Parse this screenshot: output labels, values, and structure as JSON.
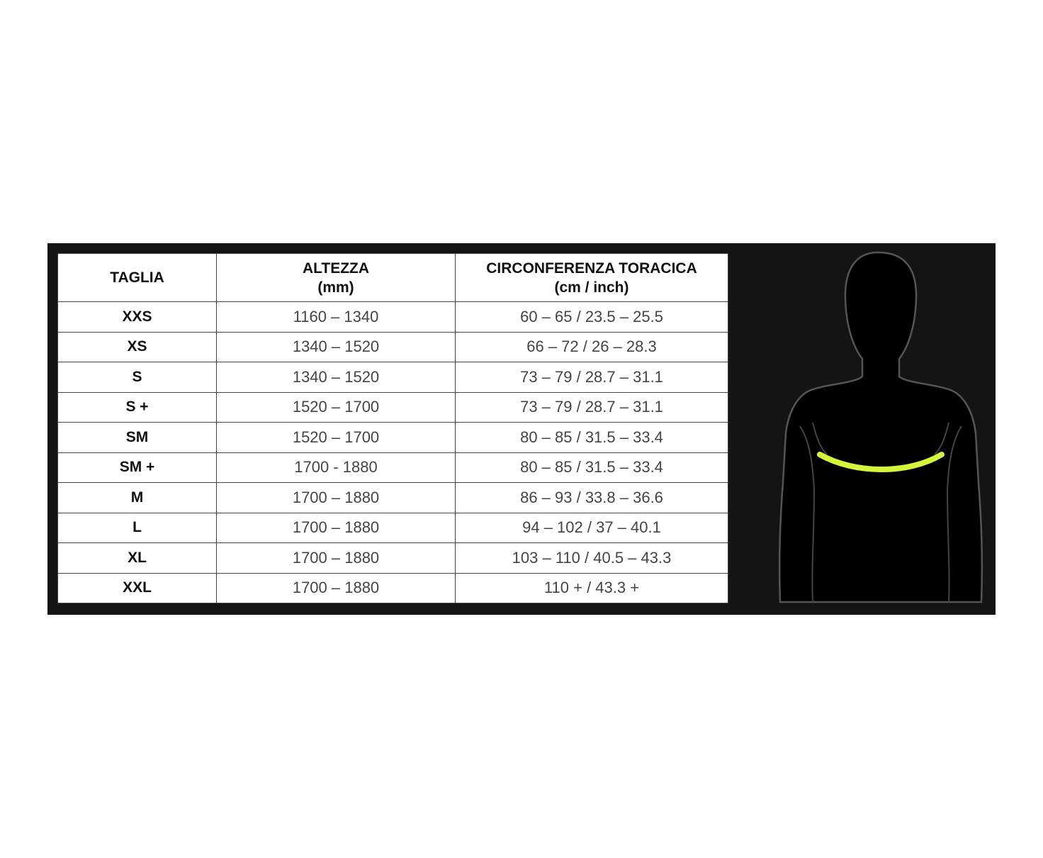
{
  "headers": [
    {
      "line1": "TAGLIA",
      "line2": ""
    },
    {
      "line1": "ALTEZZA",
      "line2": "(mm)"
    },
    {
      "line1": "CIRCONFERENZA TORACICA",
      "line2": "(cm / inch)"
    }
  ],
  "rows": [
    {
      "size": "XXS",
      "height": "1160 – 1340",
      "chest": "60 – 65 / 23.5 – 25.5"
    },
    {
      "size": "XS",
      "height": "1340 – 1520",
      "chest": "66 – 72 / 26 – 28.3"
    },
    {
      "size": "S",
      "height": "1340 – 1520",
      "chest": "73 – 79 / 28.7 – 31.1"
    },
    {
      "size": "S +",
      "height": "1520 – 1700",
      "chest": "73 – 79 / 28.7 – 31.1"
    },
    {
      "size": "SM",
      "height": "1520 – 1700",
      "chest": "80 – 85 / 31.5 – 33.4"
    },
    {
      "size": "SM +",
      "height": "1700 - 1880",
      "chest": "80 – 85 / 31.5 – 33.4"
    },
    {
      "size": "M",
      "height": "1700 – 1880",
      "chest": "86 – 93 / 33.8 – 36.6"
    },
    {
      "size": "L",
      "height": "1700 – 1880",
      "chest": "94 – 102 / 37 – 40.1"
    },
    {
      "size": "XL",
      "height": "1700 – 1880",
      "chest": "103 – 110 / 40.5 – 43.3"
    },
    {
      "size": "XXL",
      "height": "1700 – 1880",
      "chest": "110 + / 43.3 +"
    }
  ],
  "colors": {
    "panel": "#141414",
    "chest_band": "#d4f53c"
  },
  "figure_icon": "human-torso-silhouette"
}
